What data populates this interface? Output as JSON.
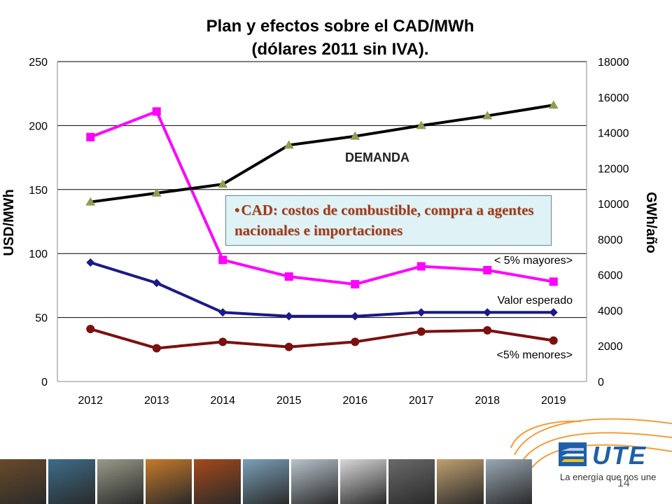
{
  "title": {
    "line1": "Plan y efectos sobre el CAD/MWh",
    "line2": "(dólares 2011 sin IVA)."
  },
  "chart_data": {
    "type": "line",
    "categories": [
      "2012",
      "2013",
      "2014",
      "2015",
      "2016",
      "2017",
      "2018",
      "2019"
    ],
    "y_left": {
      "label": "USD/MWh",
      "range": [
        0,
        250
      ],
      "ticks": [
        "0",
        "50",
        "100",
        "150",
        "200",
        "250"
      ]
    },
    "y_right": {
      "label": "GWh/año",
      "range": [
        0,
        18000
      ],
      "ticks": [
        "0",
        "2000",
        "4000",
        "6000",
        "8000",
        "10000",
        "12000",
        "14000",
        "16000",
        "18000"
      ]
    },
    "grid": "horizontal",
    "series": [
      {
        "name": "< 5% mayores>",
        "axis": "left",
        "color": "#ff00ff",
        "marker": "square",
        "values": [
          191,
          211,
          95,
          82,
          76,
          90,
          87,
          78
        ]
      },
      {
        "name": "Valor esperado",
        "axis": "left",
        "color": "#1a1a8a",
        "marker": "diamond",
        "values": [
          93,
          77,
          54,
          51,
          51,
          54,
          54,
          54
        ]
      },
      {
        "name": "<5% menores>",
        "axis": "left",
        "color": "#7b1010",
        "marker": "circle",
        "values": [
          41,
          26,
          31,
          27,
          31,
          39,
          40,
          32
        ]
      },
      {
        "name": "DEMANDA",
        "axis": "right",
        "color": "#000000",
        "marker": "triangle",
        "marker_color": "#8f9e52",
        "values": [
          10100,
          10600,
          11100,
          13300,
          13800,
          14400,
          14950,
          15550
        ]
      }
    ],
    "annotations": {
      "demanda": "DEMANDA",
      "mayores": "< 5% mayores>",
      "esperado": "Valor esperado",
      "menores": "<5% menores>"
    },
    "callout": "CAD: costos de combustible, compra a agentes  nacionales e importaciones"
  },
  "footer": {
    "logo_text": "UTE",
    "slogan": "La energía que nos une",
    "page_number": "14"
  },
  "colors": {
    "photo_tones": [
      "#6a4a2a",
      "#3d6d8a",
      "#9a9a8a",
      "#c67a2a",
      "#a44a1a",
      "#7aa0b8",
      "#b8c4cc",
      "#d8d8d8",
      "#6a6a6a",
      "#c0a070",
      "#9aa8b4"
    ],
    "brand_blue": "#1f5fa8",
    "brand_orange": "#f28c1a"
  }
}
